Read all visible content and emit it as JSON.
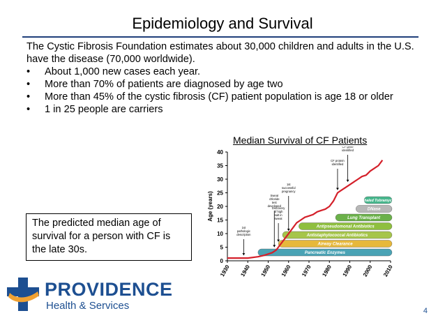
{
  "slide": {
    "title": "Epidemiology and Survival",
    "intro": "The Cystic Fibrosis Foundation estimates about 30,000 children and adults in the U.S. have the disease (70,000 worldwide).",
    "bullets": [
      "About 1,000 new cases each year.",
      "More than 70% of patients are diagnosed by age two",
      "More than 45% of the cystic fibrosis (CF) patient population is age 18 or older",
      "1 in 25 people are carriers"
    ],
    "callout": "The predicted median age of survival for a person with CF is the late 30s.",
    "page_number": "4"
  },
  "logo": {
    "name": "PROVIDENCE",
    "tagline": "Health & Services",
    "colors": {
      "blue": "#1d4f91",
      "orange": "#f0a132"
    }
  },
  "chart_data": {
    "type": "line",
    "title": "Median Survival of CF Patients",
    "ylabel": "Age (years)",
    "ylim": [
      0,
      40
    ],
    "xlim": [
      1930,
      2010
    ],
    "y_ticks": [
      "0",
      "5",
      "10",
      "15",
      "20",
      "25",
      "30",
      "35",
      "40"
    ],
    "x_ticks": [
      "1930",
      "1940",
      "1950",
      "1960",
      "1970",
      "1980",
      "1990",
      "2000",
      "2010"
    ],
    "line_color": "#d4202a",
    "series": [
      {
        "x": [
          1930,
          1935,
          1940,
          1945,
          1948,
          1950,
          1952,
          1954,
          1956,
          1958,
          1960,
          1962,
          1964,
          1966,
          1968,
          1970,
          1972,
          1974,
          1976,
          1978,
          1980,
          1982,
          1984,
          1986,
          1988,
          1990,
          1992,
          1994,
          1996,
          1998,
          2000,
          2002,
          2004,
          2006
        ],
        "values": [
          1,
          1,
          1,
          1.5,
          2,
          2.5,
          3,
          4,
          6,
          8,
          10,
          12,
          14,
          15,
          16,
          16.5,
          17,
          18,
          18.5,
          19,
          20,
          22,
          25,
          26,
          27,
          28,
          29,
          30,
          31,
          31.5,
          33,
          34,
          35,
          37
        ]
      }
    ],
    "bands": [
      {
        "label": "Pancreatic Enzymes",
        "start": 1945,
        "color": "#4aa3b5"
      },
      {
        "label": "Airway Clearance",
        "start": 1955,
        "color": "#e7b83b"
      },
      {
        "label": "Antistaphylococcal Antibiotics",
        "start": 1957,
        "color": "#a6c54a"
      },
      {
        "label": "Antipseudomonal Antibiotics",
        "start": 1965,
        "color": "#8fbf3f"
      },
      {
        "label": "Lung Transplant",
        "start": 1983,
        "color": "#6bb14a"
      },
      {
        "label": "DNase",
        "start": 1993,
        "color": "#b7b7b7"
      },
      {
        "label": "Inhaled Tobramycin",
        "start": 1997,
        "color": "#48b78d"
      }
    ],
    "annotations": [
      {
        "label": "1st pathologic description",
        "x": 1938
      },
      {
        "label": "Sweat chloride test developed",
        "x": 1953
      },
      {
        "label": "Discovery of high salt in sweat",
        "x": 1955
      },
      {
        "label": "1st successful pregnancy",
        "x": 1960
      },
      {
        "label": "CF protein identified",
        "x": 1984
      },
      {
        "label": "CF gene identified",
        "x": 1989
      }
    ]
  }
}
